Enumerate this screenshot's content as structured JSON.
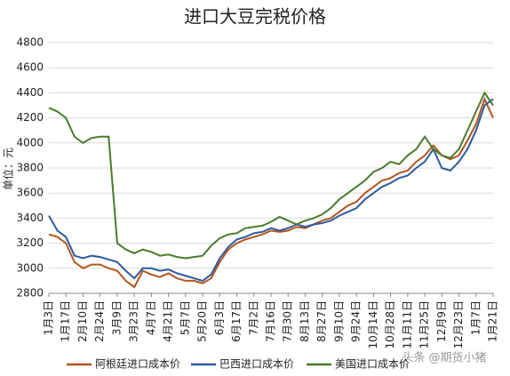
{
  "chart_data": {
    "type": "line",
    "title": "进口大豆完税价格",
    "y_label": "单位：元",
    "annotation": "头条 @期货小猪",
    "categories": [
      "1月3日",
      null,
      "1月17日",
      null,
      "2月10日",
      null,
      "2月24日",
      null,
      "3月9日",
      null,
      "3月23日",
      null,
      "4月7日",
      null,
      "4月21日",
      null,
      "5月7日",
      null,
      "5月20日",
      null,
      "6月3日",
      null,
      "6月17日",
      null,
      "7月2日",
      null,
      "7月16日",
      null,
      "7月30日",
      null,
      "8月13日",
      null,
      "8月27日",
      null,
      "9月10日",
      null,
      "9月24日",
      null,
      "10月14日",
      null,
      "10月28日",
      null,
      "11月11日",
      null,
      "11月25日",
      null,
      "12月9日",
      null,
      "12月23日",
      null,
      "1月7日",
      null,
      "1月21日"
    ],
    "series": [
      {
        "name": "阿根廷进口成本价",
        "color": "#b5541c",
        "values": [
          3270,
          3250,
          3200,
          3050,
          3000,
          3030,
          3030,
          3000,
          2980,
          2900,
          2850,
          2980,
          2950,
          2930,
          2960,
          2920,
          2900,
          2900,
          2880,
          2920,
          3050,
          3150,
          3200,
          3230,
          3250,
          3270,
          3300,
          3290,
          3300,
          3330,
          3320,
          3350,
          3380,
          3400,
          3450,
          3500,
          3530,
          3600,
          3650,
          3700,
          3720,
          3760,
          3780,
          3850,
          3900,
          3980,
          3900,
          3870,
          3900,
          4020,
          4150,
          4350,
          4200
        ]
      },
      {
        "name": "巴西进口成本价",
        "color": "#2e5aa0",
        "values": [
          3420,
          3300,
          3250,
          3100,
          3080,
          3100,
          3090,
          3070,
          3050,
          2980,
          2920,
          3000,
          3000,
          2980,
          2990,
          2960,
          2940,
          2920,
          2900,
          2950,
          3080,
          3170,
          3230,
          3250,
          3280,
          3290,
          3320,
          3300,
          3320,
          3350,
          3330,
          3350,
          3360,
          3380,
          3420,
          3450,
          3480,
          3550,
          3600,
          3650,
          3680,
          3720,
          3740,
          3800,
          3850,
          3950,
          3800,
          3780,
          3850,
          3950,
          4100,
          4300,
          4350
        ]
      },
      {
        "name": "美国进口成本价",
        "color": "#4a7a2c",
        "values": [
          4280,
          4250,
          4200,
          4050,
          4000,
          4040,
          4050,
          4050,
          3200,
          3150,
          3120,
          3150,
          3130,
          3100,
          3110,
          3090,
          3080,
          3090,
          3100,
          3180,
          3240,
          3270,
          3280,
          3320,
          3330,
          3340,
          3370,
          3410,
          3380,
          3350,
          3380,
          3400,
          3430,
          3480,
          3550,
          3600,
          3650,
          3700,
          3770,
          3800,
          3850,
          3830,
          3900,
          3950,
          4050,
          3950,
          3900,
          3880,
          3950,
          4100,
          4250,
          4400,
          4300
        ]
      }
    ],
    "ylim": [
      2800,
      4800
    ],
    "yticks": [
      2800,
      3000,
      3200,
      3400,
      3600,
      3800,
      4000,
      4200,
      4400,
      4600,
      4800
    ],
    "grid": true,
    "legend": "bottom"
  }
}
